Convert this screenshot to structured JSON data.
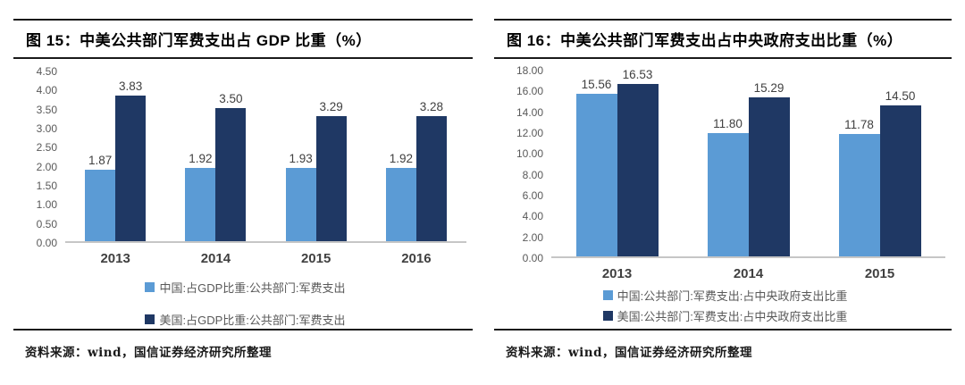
{
  "charts": [
    {
      "title": "图 15：中美公共部门军费支出占 GDP 比重（%）",
      "source": "资料来源：wind，国信证券经济研究所整理",
      "chart_data": {
        "type": "bar",
        "categories": [
          "2013",
          "2014",
          "2015",
          "2016"
        ],
        "series": [
          {
            "name": "中国:占GDP比重:公共部门:军费支出",
            "color": "#5B9BD5",
            "values": [
              1.87,
              1.92,
              1.93,
              1.92
            ]
          },
          {
            "name": "美国:占GDP比重:公共部门:军费支出",
            "color": "#1F3864",
            "values": [
              3.83,
              3.5,
              3.29,
              3.28
            ]
          }
        ],
        "value_labels": [
          [
            "1.87",
            "1.92",
            "1.93",
            "1.92"
          ],
          [
            "3.83",
            "3.50",
            "3.29",
            "3.28"
          ]
        ],
        "title": "中美公共部门军费支出占 GDP 比重（%）",
        "xlabel": "",
        "ylabel": "",
        "ylim": [
          0,
          4.5
        ],
        "yticks": [
          "4.50",
          "4.00",
          "3.50",
          "3.00",
          "2.50",
          "2.00",
          "1.50",
          "1.00",
          "0.50",
          "0.00"
        ],
        "grid": false,
        "legend_position": "bottom"
      }
    },
    {
      "title": "图 16：中美公共部门军费支出占中央政府支出比重（%）",
      "source": "资料来源：wind，国信证券经济研究所整理",
      "chart_data": {
        "type": "bar",
        "categories": [
          "2013",
          "2014",
          "2015"
        ],
        "series": [
          {
            "name": "中国:公共部门:军费支出:占中央政府支出比重",
            "color": "#5B9BD5",
            "values": [
              15.56,
              11.8,
              11.78
            ]
          },
          {
            "name": "美国:公共部门:军费支出:占中央政府支出比重",
            "color": "#1F3864",
            "values": [
              16.53,
              15.29,
              14.5
            ]
          }
        ],
        "value_labels": [
          [
            "15.56",
            "11.80",
            "11.78"
          ],
          [
            "16.53",
            "15.29",
            "14.50"
          ]
        ],
        "title": "中美公共部门军费支出占中央政府支出比重（%）",
        "xlabel": "",
        "ylabel": "",
        "ylim": [
          0,
          18
        ],
        "yticks": [
          "18.00",
          "16.00",
          "14.00",
          "12.00",
          "10.00",
          "8.00",
          "6.00",
          "4.00",
          "2.00",
          "0.00"
        ],
        "grid": false,
        "legend_position": "bottom"
      }
    }
  ],
  "colors": {
    "china_series": "#5B9BD5",
    "us_series": "#1F3864",
    "axis_line": "#c6c6c6"
  }
}
